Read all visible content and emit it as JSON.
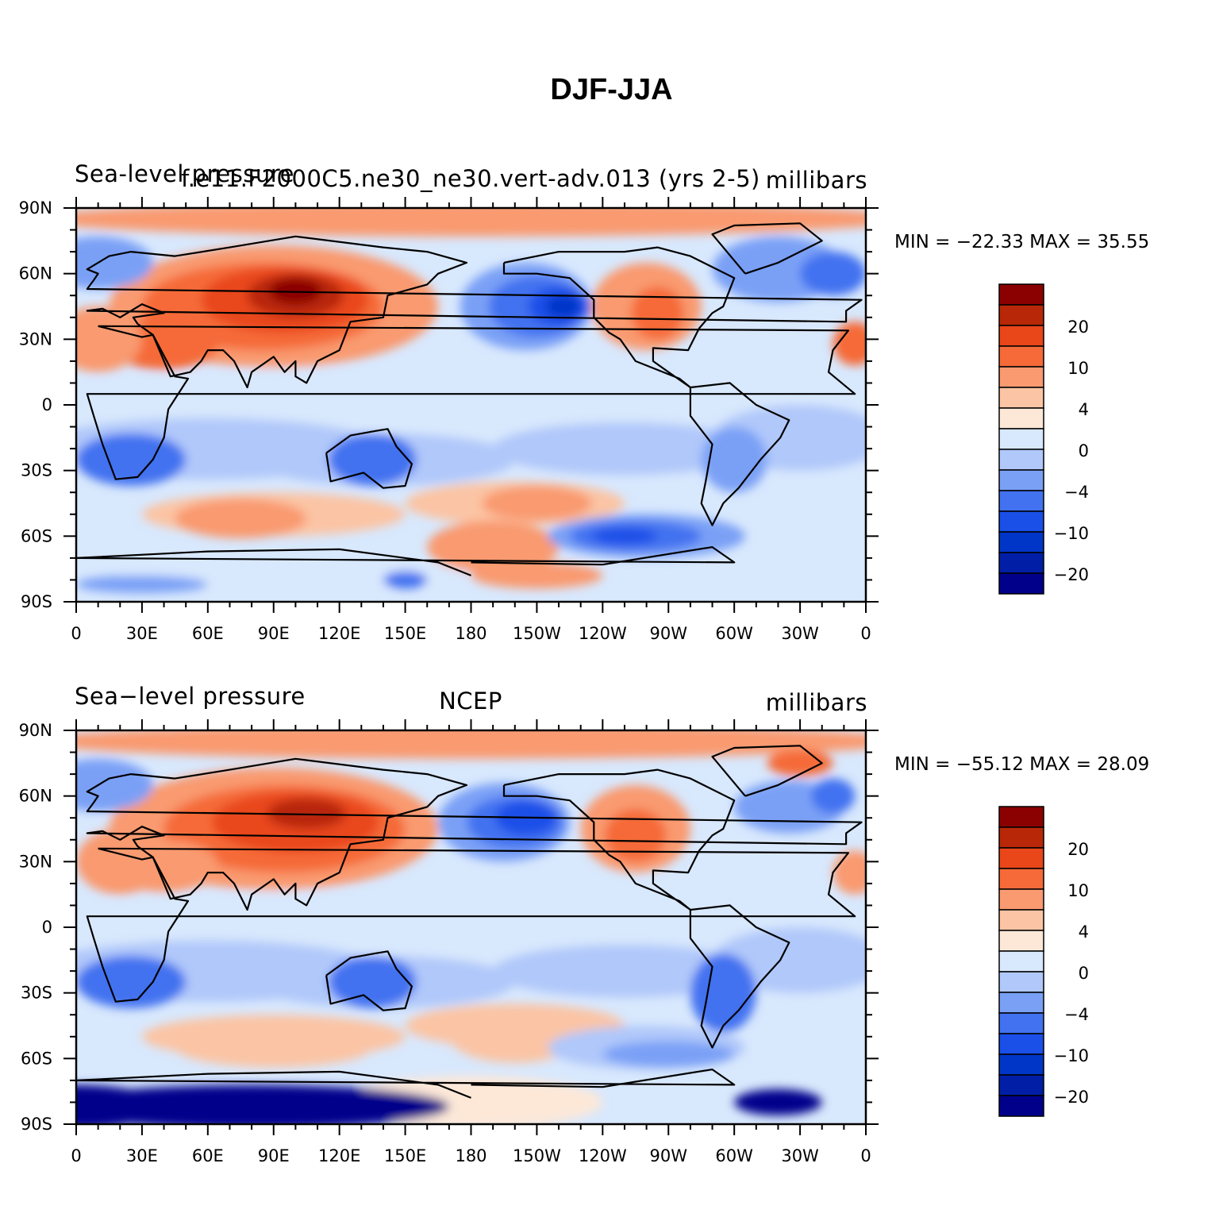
{
  "title": "DJF-JJA",
  "colors": {
    "levels": [
      "#00008b",
      "#001fa6",
      "#0036c8",
      "#1a4fe8",
      "#4272f0",
      "#7aa0f6",
      "#b0c8fa",
      "#d8e8fd",
      "#fde8d8",
      "#fbc4a4",
      "#f99a70",
      "#f56a38",
      "#e9461a",
      "#b82808",
      "#8b0000"
    ],
    "coast": "#000000"
  },
  "colorbar": {
    "labels": [
      "20",
      "10",
      "4",
      "0",
      "−4",
      "−10",
      "−20"
    ]
  },
  "axes": {
    "lat_labels": [
      "90N",
      "60N",
      "30N",
      "0",
      "30S",
      "60S",
      "90S"
    ],
    "lon_labels": [
      "0",
      "30E",
      "60E",
      "90E",
      "120E",
      "150E",
      "180",
      "150W",
      "120W",
      "90W",
      "60W",
      "30W",
      "0"
    ]
  },
  "panels": [
    {
      "left_text": "Sea-level pressure",
      "center_text": "f.e11.F2000C5.ne30_ne30.vert-adv.013 (yrs 2-5)",
      "right_text": "millibars",
      "minmax": "MIN = −22.33  MAX =   35.55"
    },
    {
      "left_text": "Sea−level pressure",
      "center_text": "NCEP",
      "right_text": "millibars",
      "minmax": "MIN = −55.12  MAX =   28.09"
    }
  ],
  "chart_data": {
    "type": "heatmap",
    "variable": "Sea-level pressure",
    "units": "millibars",
    "contour_levels": [
      -25,
      -20,
      -15,
      -10,
      -7,
      -4,
      -2,
      0,
      2,
      4,
      7,
      10,
      15,
      20,
      25
    ],
    "x": [
      "0",
      "30E",
      "60E",
      "90E",
      "120E",
      "150E",
      "180",
      "150W",
      "120W",
      "90W",
      "60W",
      "30W",
      "0"
    ],
    "y": [
      "90N",
      "60N",
      "30N",
      "0",
      "30S",
      "60S",
      "90S"
    ],
    "maps": [
      {
        "name": "f.e11.F2000C5.ne30_ne30.vert-adv.013 (yrs 2-5)",
        "min": -22.33,
        "max": 35.55
      },
      {
        "name": "NCEP",
        "min": -55.12,
        "max": 28.09
      }
    ]
  }
}
